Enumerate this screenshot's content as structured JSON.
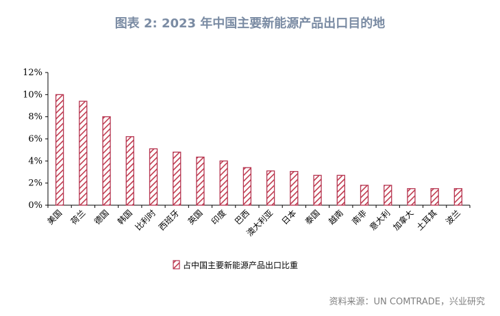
{
  "title": "图表 2:  2023 年中国主要新能源产品出口目的地",
  "source": "资料来源：UN COMTRADE，兴业研究",
  "colors": {
    "bar_stroke": "#b5334f",
    "bar_hatch": "#c0394d",
    "axis": "#000000"
  },
  "chart_data": {
    "type": "bar",
    "title": "2023 年中国主要新能源产品出口目的地",
    "xlabel": "",
    "ylabel": "",
    "ylim": [
      0,
      12
    ],
    "yticks": [
      0,
      2,
      4,
      6,
      8,
      10,
      12
    ],
    "ytick_labels": [
      "0%",
      "2%",
      "4%",
      "6%",
      "8%",
      "10%",
      "12%"
    ],
    "categories": [
      "美国",
      "荷兰",
      "德国",
      "韩国",
      "比利时",
      "西班牙",
      "英国",
      "印度",
      "巴西",
      "澳大利亚",
      "日本",
      "泰国",
      "越南",
      "南非",
      "意大利",
      "加拿大",
      "土耳其",
      "波兰"
    ],
    "series": [
      {
        "name": "占中国主要新能源产品出口比重",
        "values": [
          10.0,
          9.4,
          8.0,
          6.2,
          5.1,
          4.8,
          4.35,
          4.0,
          3.4,
          3.1,
          3.05,
          2.7,
          2.7,
          1.8,
          1.8,
          1.5,
          1.5,
          1.5
        ]
      }
    ],
    "legend": "bottom",
    "grid": false
  }
}
